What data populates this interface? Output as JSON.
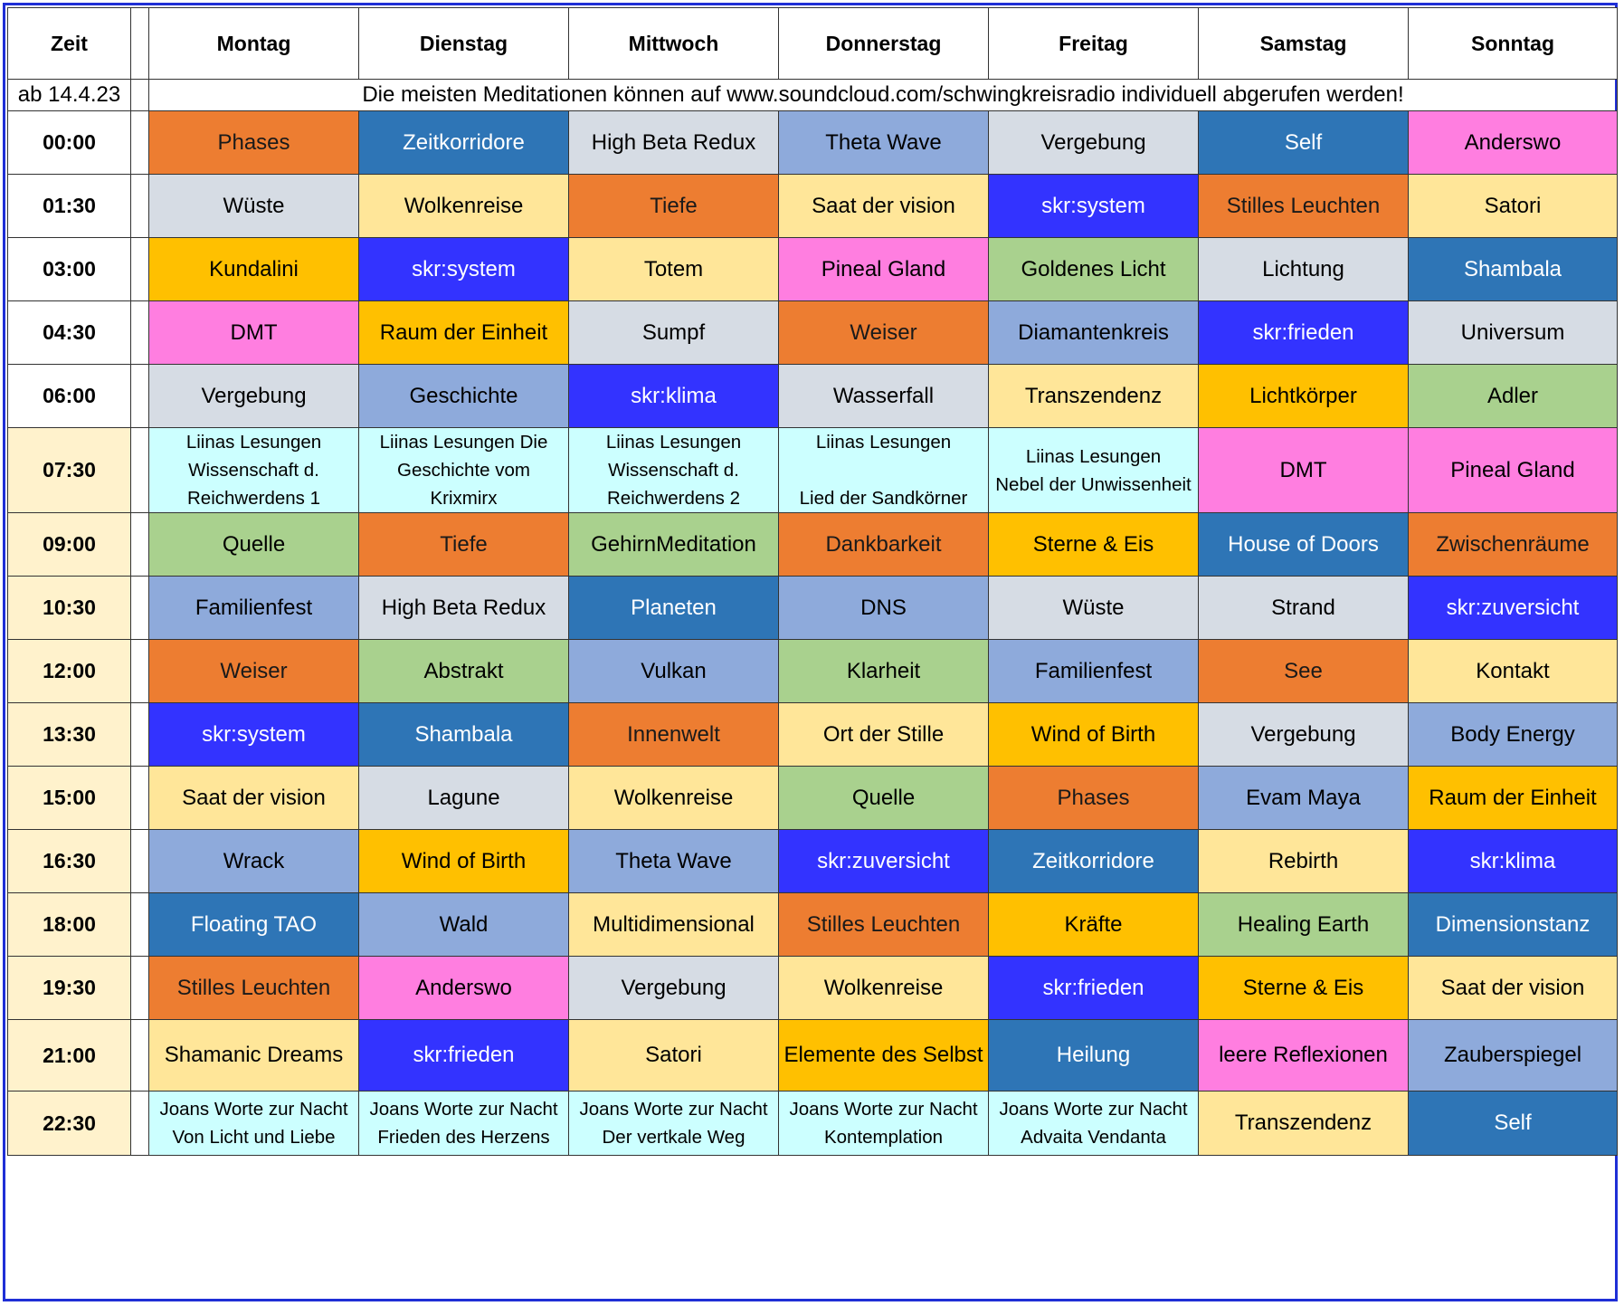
{
  "header": {
    "time": "Zeit",
    "days": [
      "Montag",
      "Dienstag",
      "Mittwoch",
      "Donnerstag",
      "Freitag",
      "Samstag",
      "Sonntag"
    ]
  },
  "subheader": {
    "since": "ab 14.4.23",
    "notice": "Die meisten Meditationen können auf www.soundcloud.com/schwingkreisradio  individuell abgerufen werden!"
  },
  "colors": {
    "orange": "#ed7d31",
    "steel": "#2e75b6",
    "grey": "#d6dce4",
    "lavender": "#8eaadb",
    "pink": "#ff7ee0",
    "cream": "#ffe699",
    "royal": "#3333ff",
    "gold": "#ffc000",
    "green": "#a9d18e",
    "cyan": "#ccffff",
    "timecream": "#fff2cc",
    "white": "#ffffff"
  },
  "rows": [
    {
      "time": "00:00",
      "timecolor": "white",
      "cells": [
        {
          "lines": [
            "Phases"
          ],
          "color": "orange"
        },
        {
          "lines": [
            "Zeitkorridore"
          ],
          "color": "steel"
        },
        {
          "lines": [
            "High Beta Redux"
          ],
          "color": "grey"
        },
        {
          "lines": [
            "Theta Wave"
          ],
          "color": "lavender"
        },
        {
          "lines": [
            "Vergebung"
          ],
          "color": "grey"
        },
        {
          "lines": [
            "Self"
          ],
          "color": "steel"
        },
        {
          "lines": [
            "Anderswo"
          ],
          "color": "pink"
        }
      ]
    },
    {
      "time": "01:30",
      "timecolor": "white",
      "cells": [
        {
          "lines": [
            "Wüste"
          ],
          "color": "grey"
        },
        {
          "lines": [
            "Wolkenreise"
          ],
          "color": "cream"
        },
        {
          "lines": [
            "Tiefe"
          ],
          "color": "orange"
        },
        {
          "lines": [
            "Saat der vision"
          ],
          "color": "cream"
        },
        {
          "lines": [
            "skr:system"
          ],
          "color": "royal"
        },
        {
          "lines": [
            "Stilles Leuchten"
          ],
          "color": "orange"
        },
        {
          "lines": [
            "Satori"
          ],
          "color": "cream"
        }
      ]
    },
    {
      "time": "03:00",
      "timecolor": "white",
      "cells": [
        {
          "lines": [
            "Kundalini"
          ],
          "color": "gold"
        },
        {
          "lines": [
            "skr:system"
          ],
          "color": "royal"
        },
        {
          "lines": [
            "Totem"
          ],
          "color": "cream"
        },
        {
          "lines": [
            "Pineal Gland"
          ],
          "color": "pink"
        },
        {
          "lines": [
            "Goldenes Licht"
          ],
          "color": "green"
        },
        {
          "lines": [
            "Lichtung"
          ],
          "color": "grey"
        },
        {
          "lines": [
            "Shambala"
          ],
          "color": "steel"
        }
      ]
    },
    {
      "time": "04:30",
      "timecolor": "white",
      "cells": [
        {
          "lines": [
            "DMT"
          ],
          "color": "pink"
        },
        {
          "lines": [
            "Raum der Einheit"
          ],
          "color": "gold"
        },
        {
          "lines": [
            "Sumpf"
          ],
          "color": "grey"
        },
        {
          "lines": [
            "Weiser"
          ],
          "color": "orange"
        },
        {
          "lines": [
            "Diamantenkreis"
          ],
          "color": "lavender"
        },
        {
          "lines": [
            "skr:frieden"
          ],
          "color": "royal"
        },
        {
          "lines": [
            "Universum"
          ],
          "color": "grey"
        }
      ]
    },
    {
      "time": "06:00",
      "timecolor": "white",
      "cells": [
        {
          "lines": [
            "Vergebung"
          ],
          "color": "grey"
        },
        {
          "lines": [
            "Geschichte"
          ],
          "color": "lavender"
        },
        {
          "lines": [
            "skr:klima"
          ],
          "color": "royal"
        },
        {
          "lines": [
            "Wasserfall"
          ],
          "color": "grey"
        },
        {
          "lines": [
            "Transzendenz"
          ],
          "color": "cream"
        },
        {
          "lines": [
            "Lichtkörper"
          ],
          "color": "gold"
        },
        {
          "lines": [
            "Adler"
          ],
          "color": "green"
        }
      ]
    },
    {
      "time": "07:30",
      "timecolor": "timecream",
      "cells": [
        {
          "lines": [
            "Liinas Lesungen",
            "Wissenschaft d.",
            "Reichwerdens 1"
          ],
          "color": "cyan"
        },
        {
          "lines": [
            "Liinas Lesungen  Die",
            "Geschichte vom",
            "Krixmirx"
          ],
          "color": "cyan"
        },
        {
          "lines": [
            "Liinas Lesungen",
            "Wissenschaft d.",
            "Reichwerdens 2"
          ],
          "color": "cyan"
        },
        {
          "lines": [
            "Liinas Lesungen",
            "",
            "Lied der Sandkörner"
          ],
          "color": "cyan"
        },
        {
          "lines": [
            "Liinas Lesungen",
            "Nebel der Unwissenheit"
          ],
          "color": "cyan"
        },
        {
          "lines": [
            "DMT"
          ],
          "color": "pink"
        },
        {
          "lines": [
            "Pineal Gland"
          ],
          "color": "pink"
        }
      ]
    },
    {
      "time": "09:00",
      "timecolor": "timecream",
      "cells": [
        {
          "lines": [
            "Quelle"
          ],
          "color": "green"
        },
        {
          "lines": [
            "Tiefe"
          ],
          "color": "orange"
        },
        {
          "lines": [
            "GehirnMeditation"
          ],
          "color": "green"
        },
        {
          "lines": [
            "Dankbarkeit"
          ],
          "color": "orange"
        },
        {
          "lines": [
            "Sterne & Eis"
          ],
          "color": "gold"
        },
        {
          "lines": [
            "House of Doors"
          ],
          "color": "steel"
        },
        {
          "lines": [
            "Zwischenräume"
          ],
          "color": "orange"
        }
      ]
    },
    {
      "time": "10:30",
      "timecolor": "timecream",
      "cells": [
        {
          "lines": [
            "Familienfest"
          ],
          "color": "lavender"
        },
        {
          "lines": [
            "High Beta Redux"
          ],
          "color": "grey"
        },
        {
          "lines": [
            "Planeten"
          ],
          "color": "steel"
        },
        {
          "lines": [
            "DNS"
          ],
          "color": "lavender"
        },
        {
          "lines": [
            "Wüste"
          ],
          "color": "grey"
        },
        {
          "lines": [
            "Strand"
          ],
          "color": "grey"
        },
        {
          "lines": [
            "skr:zuversicht"
          ],
          "color": "royal"
        }
      ]
    },
    {
      "time": "12:00",
      "timecolor": "timecream",
      "cells": [
        {
          "lines": [
            "Weiser"
          ],
          "color": "orange"
        },
        {
          "lines": [
            "Abstrakt"
          ],
          "color": "green"
        },
        {
          "lines": [
            "Vulkan"
          ],
          "color": "lavender"
        },
        {
          "lines": [
            "Klarheit"
          ],
          "color": "green"
        },
        {
          "lines": [
            "Familienfest"
          ],
          "color": "lavender"
        },
        {
          "lines": [
            "See"
          ],
          "color": "orange"
        },
        {
          "lines": [
            "Kontakt"
          ],
          "color": "cream"
        }
      ]
    },
    {
      "time": "13:30",
      "timecolor": "timecream",
      "cells": [
        {
          "lines": [
            "skr:system"
          ],
          "color": "royal"
        },
        {
          "lines": [
            "Shambala"
          ],
          "color": "steel"
        },
        {
          "lines": [
            "Innenwelt"
          ],
          "color": "orange"
        },
        {
          "lines": [
            "Ort der Stille"
          ],
          "color": "cream"
        },
        {
          "lines": [
            "Wind of Birth"
          ],
          "color": "gold"
        },
        {
          "lines": [
            "Vergebung"
          ],
          "color": "grey"
        },
        {
          "lines": [
            "Body Energy"
          ],
          "color": "lavender"
        }
      ]
    },
    {
      "time": "15:00",
      "timecolor": "timecream",
      "cells": [
        {
          "lines": [
            "Saat der vision"
          ],
          "color": "cream"
        },
        {
          "lines": [
            "Lagune"
          ],
          "color": "grey"
        },
        {
          "lines": [
            "Wolkenreise"
          ],
          "color": "cream"
        },
        {
          "lines": [
            "Quelle"
          ],
          "color": "green"
        },
        {
          "lines": [
            "Phases"
          ],
          "color": "orange"
        },
        {
          "lines": [
            "Evam Maya"
          ],
          "color": "lavender"
        },
        {
          "lines": [
            "Raum der Einheit"
          ],
          "color": "gold"
        }
      ]
    },
    {
      "time": "16:30",
      "timecolor": "timecream",
      "cells": [
        {
          "lines": [
            "Wrack"
          ],
          "color": "lavender"
        },
        {
          "lines": [
            "Wind of Birth"
          ],
          "color": "gold"
        },
        {
          "lines": [
            "Theta Wave"
          ],
          "color": "lavender"
        },
        {
          "lines": [
            "skr:zuversicht"
          ],
          "color": "royal"
        },
        {
          "lines": [
            "Zeitkorridore"
          ],
          "color": "steel"
        },
        {
          "lines": [
            "Rebirth"
          ],
          "color": "cream"
        },
        {
          "lines": [
            "skr:klima"
          ],
          "color": "royal"
        }
      ]
    },
    {
      "time": "18:00",
      "timecolor": "timecream",
      "cells": [
        {
          "lines": [
            "Floating TAO"
          ],
          "color": "steel"
        },
        {
          "lines": [
            "Wald"
          ],
          "color": "lavender"
        },
        {
          "lines": [
            "Multidimensional"
          ],
          "color": "cream"
        },
        {
          "lines": [
            "Stilles Leuchten"
          ],
          "color": "orange"
        },
        {
          "lines": [
            "Kräfte"
          ],
          "color": "gold"
        },
        {
          "lines": [
            "Healing Earth"
          ],
          "color": "green"
        },
        {
          "lines": [
            "Dimensionstanz"
          ],
          "color": "steel"
        }
      ]
    },
    {
      "time": "19:30",
      "timecolor": "timecream",
      "cells": [
        {
          "lines": [
            "Stilles Leuchten"
          ],
          "color": "orange"
        },
        {
          "lines": [
            "Anderswo"
          ],
          "color": "pink"
        },
        {
          "lines": [
            "Vergebung"
          ],
          "color": "grey"
        },
        {
          "lines": [
            "Wolkenreise"
          ],
          "color": "cream"
        },
        {
          "lines": [
            "skr:frieden"
          ],
          "color": "royal"
        },
        {
          "lines": [
            "Sterne & Eis"
          ],
          "color": "gold"
        },
        {
          "lines": [
            "Saat der vision"
          ],
          "color": "cream"
        }
      ]
    },
    {
      "time": "21:00",
      "timecolor": "timecream",
      "cells": [
        {
          "lines": [
            "Shamanic Dreams"
          ],
          "color": "cream"
        },
        {
          "lines": [
            "skr:frieden"
          ],
          "color": "royal"
        },
        {
          "lines": [
            "Satori"
          ],
          "color": "cream"
        },
        {
          "lines": [
            "Elemente des Selbst"
          ],
          "color": "gold"
        },
        {
          "lines": [
            "Heilung"
          ],
          "color": "steel"
        },
        {
          "lines": [
            "leere Reflexionen"
          ],
          "color": "pink"
        },
        {
          "lines": [
            "Zauberspiegel"
          ],
          "color": "lavender"
        }
      ]
    },
    {
      "time": "22:30",
      "timecolor": "timecream",
      "cells": [
        {
          "lines": [
            "Joans Worte zur Nacht",
            "Von Licht und Liebe"
          ],
          "color": "cyan"
        },
        {
          "lines": [
            "Joans Worte zur Nacht",
            "Frieden des Herzens"
          ],
          "color": "cyan"
        },
        {
          "lines": [
            "Joans Worte zur Nacht",
            "Der vertkale Weg"
          ],
          "color": "cyan"
        },
        {
          "lines": [
            "Joans Worte zur Nacht",
            "Kontemplation"
          ],
          "color": "cyan"
        },
        {
          "lines": [
            "Joans Worte zur Nacht",
            "Advaita Vendanta"
          ],
          "color": "cyan"
        },
        {
          "lines": [
            "Transzendenz"
          ],
          "color": "cream"
        },
        {
          "lines": [
            "Self"
          ],
          "color": "steel"
        }
      ]
    }
  ]
}
